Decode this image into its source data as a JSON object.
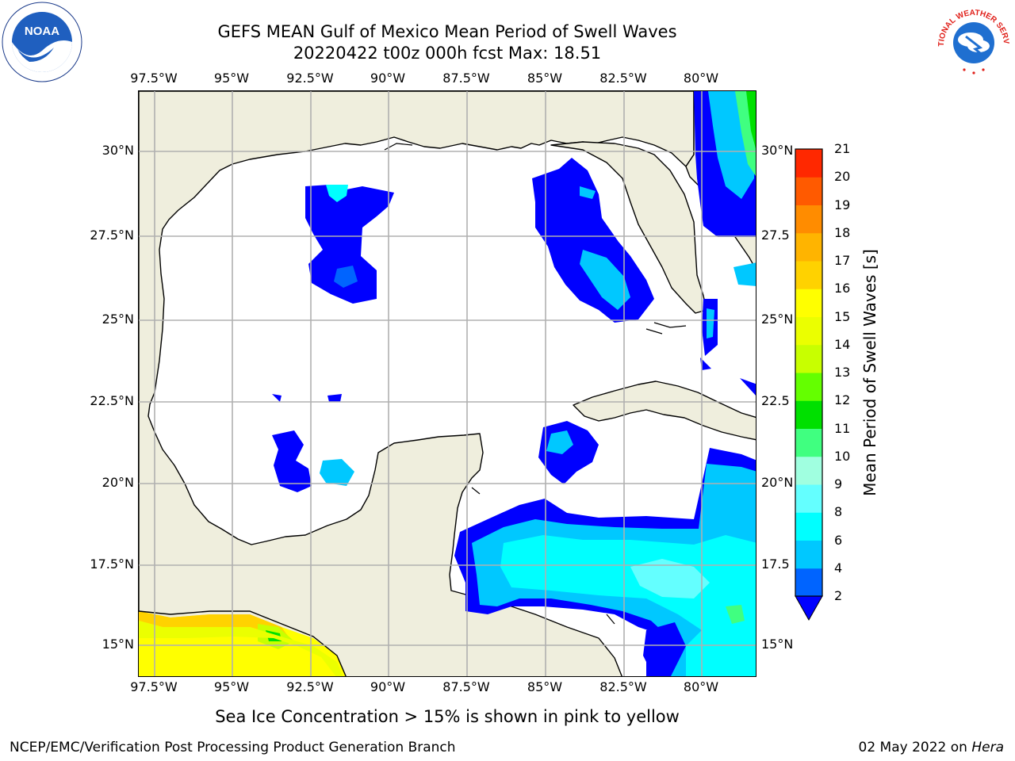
{
  "header": {
    "title_line1": "GEFS MEAN Gulf of Mexico Mean Period of Swell Waves",
    "title_line2": "20220422 t00z 000h fcst   Max: 18.51"
  },
  "axes": {
    "lon_labels": [
      "97.5°W",
      "95°W",
      "92.5°W",
      "90°W",
      "87.5°W",
      "85°W",
      "82.5°W",
      "80°W"
    ],
    "lat_labels_left": [
      "30°N",
      "27.5°N",
      "25°N",
      "22.5°N",
      "20°N",
      "17.5°N",
      "15°N"
    ],
    "lat_labels_right": [
      "30°N",
      "27.5",
      "25°N",
      "22.5",
      "20°N",
      "17.5",
      "15°N"
    ]
  },
  "colorbar": {
    "title": "Mean Period of Swell Waves [s]",
    "ticks": [
      "2",
      "4",
      "6",
      "8",
      "9",
      "10",
      "11",
      "12",
      "13",
      "14",
      "15",
      "16",
      "17",
      "18",
      "19",
      "20",
      "21"
    ],
    "colors": [
      "#0000ff",
      "#0064ff",
      "#00c8ff",
      "#00ffff",
      "#64ffff",
      "#a0ffe0",
      "#40ff80",
      "#00e000",
      "#64ff00",
      "#c8ff00",
      "#ebff00",
      "#ffff00",
      "#ffd200",
      "#ffb400",
      "#ff8c00",
      "#ff5a00",
      "#ff2800",
      "#ff0000"
    ],
    "extend_color": "#0000ff"
  },
  "map": {
    "land_color": "#efeedd",
    "ocean_color": "#ffffff",
    "grid_color": "#b0b0b0"
  },
  "caption": "Sea Ice Concentration > 15% is shown in pink to yellow",
  "footer": {
    "left": "NCEP/EMC/Verification Post Processing Product Generation Branch",
    "right_date": "02 May 2022 on ",
    "right_host": "Hera"
  },
  "logos": {
    "noaa_text": "NOAA",
    "nws_text": "NATIONAL WEATHER SERVICE"
  }
}
